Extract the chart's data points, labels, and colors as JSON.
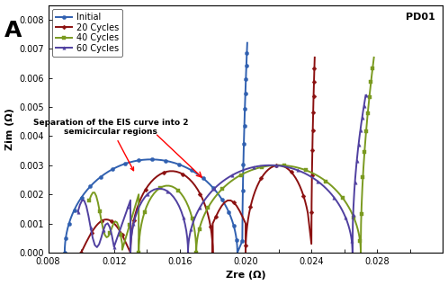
{
  "title_label": "A",
  "panel_label": "PD01",
  "xlabel": "Zre (Ω)",
  "ylabel": "Zim (Ω)",
  "xlim": [
    0.008,
    0.032
  ],
  "ylim": [
    0.0,
    0.0085
  ],
  "xticks": [
    0.008,
    0.01,
    0.012,
    0.014,
    0.016,
    0.018,
    0.02,
    0.022,
    0.024,
    0.026,
    0.028,
    0.03,
    0.032
  ],
  "xtick_labels": [
    "0.008",
    "",
    "0.012",
    "",
    "0.016",
    "",
    "0.020",
    "",
    "0.024",
    "",
    "0.028",
    "",
    ""
  ],
  "yticks": [
    0.0,
    0.001,
    0.002,
    0.003,
    0.004,
    0.005,
    0.006,
    0.007,
    0.008
  ],
  "annotation": "Separation of the EIS curve into 2\nsemicircular regions",
  "colors": {
    "Initial": "#3060b0",
    "20 Cycles": "#8b1010",
    "40 Cycles": "#7a9a20",
    "60 Cycles": "#5040a0"
  },
  "markers": {
    "Initial": "o",
    "20 Cycles": "D",
    "40 Cycles": "s",
    "60 Cycles": "^"
  },
  "background": "#ffffff"
}
